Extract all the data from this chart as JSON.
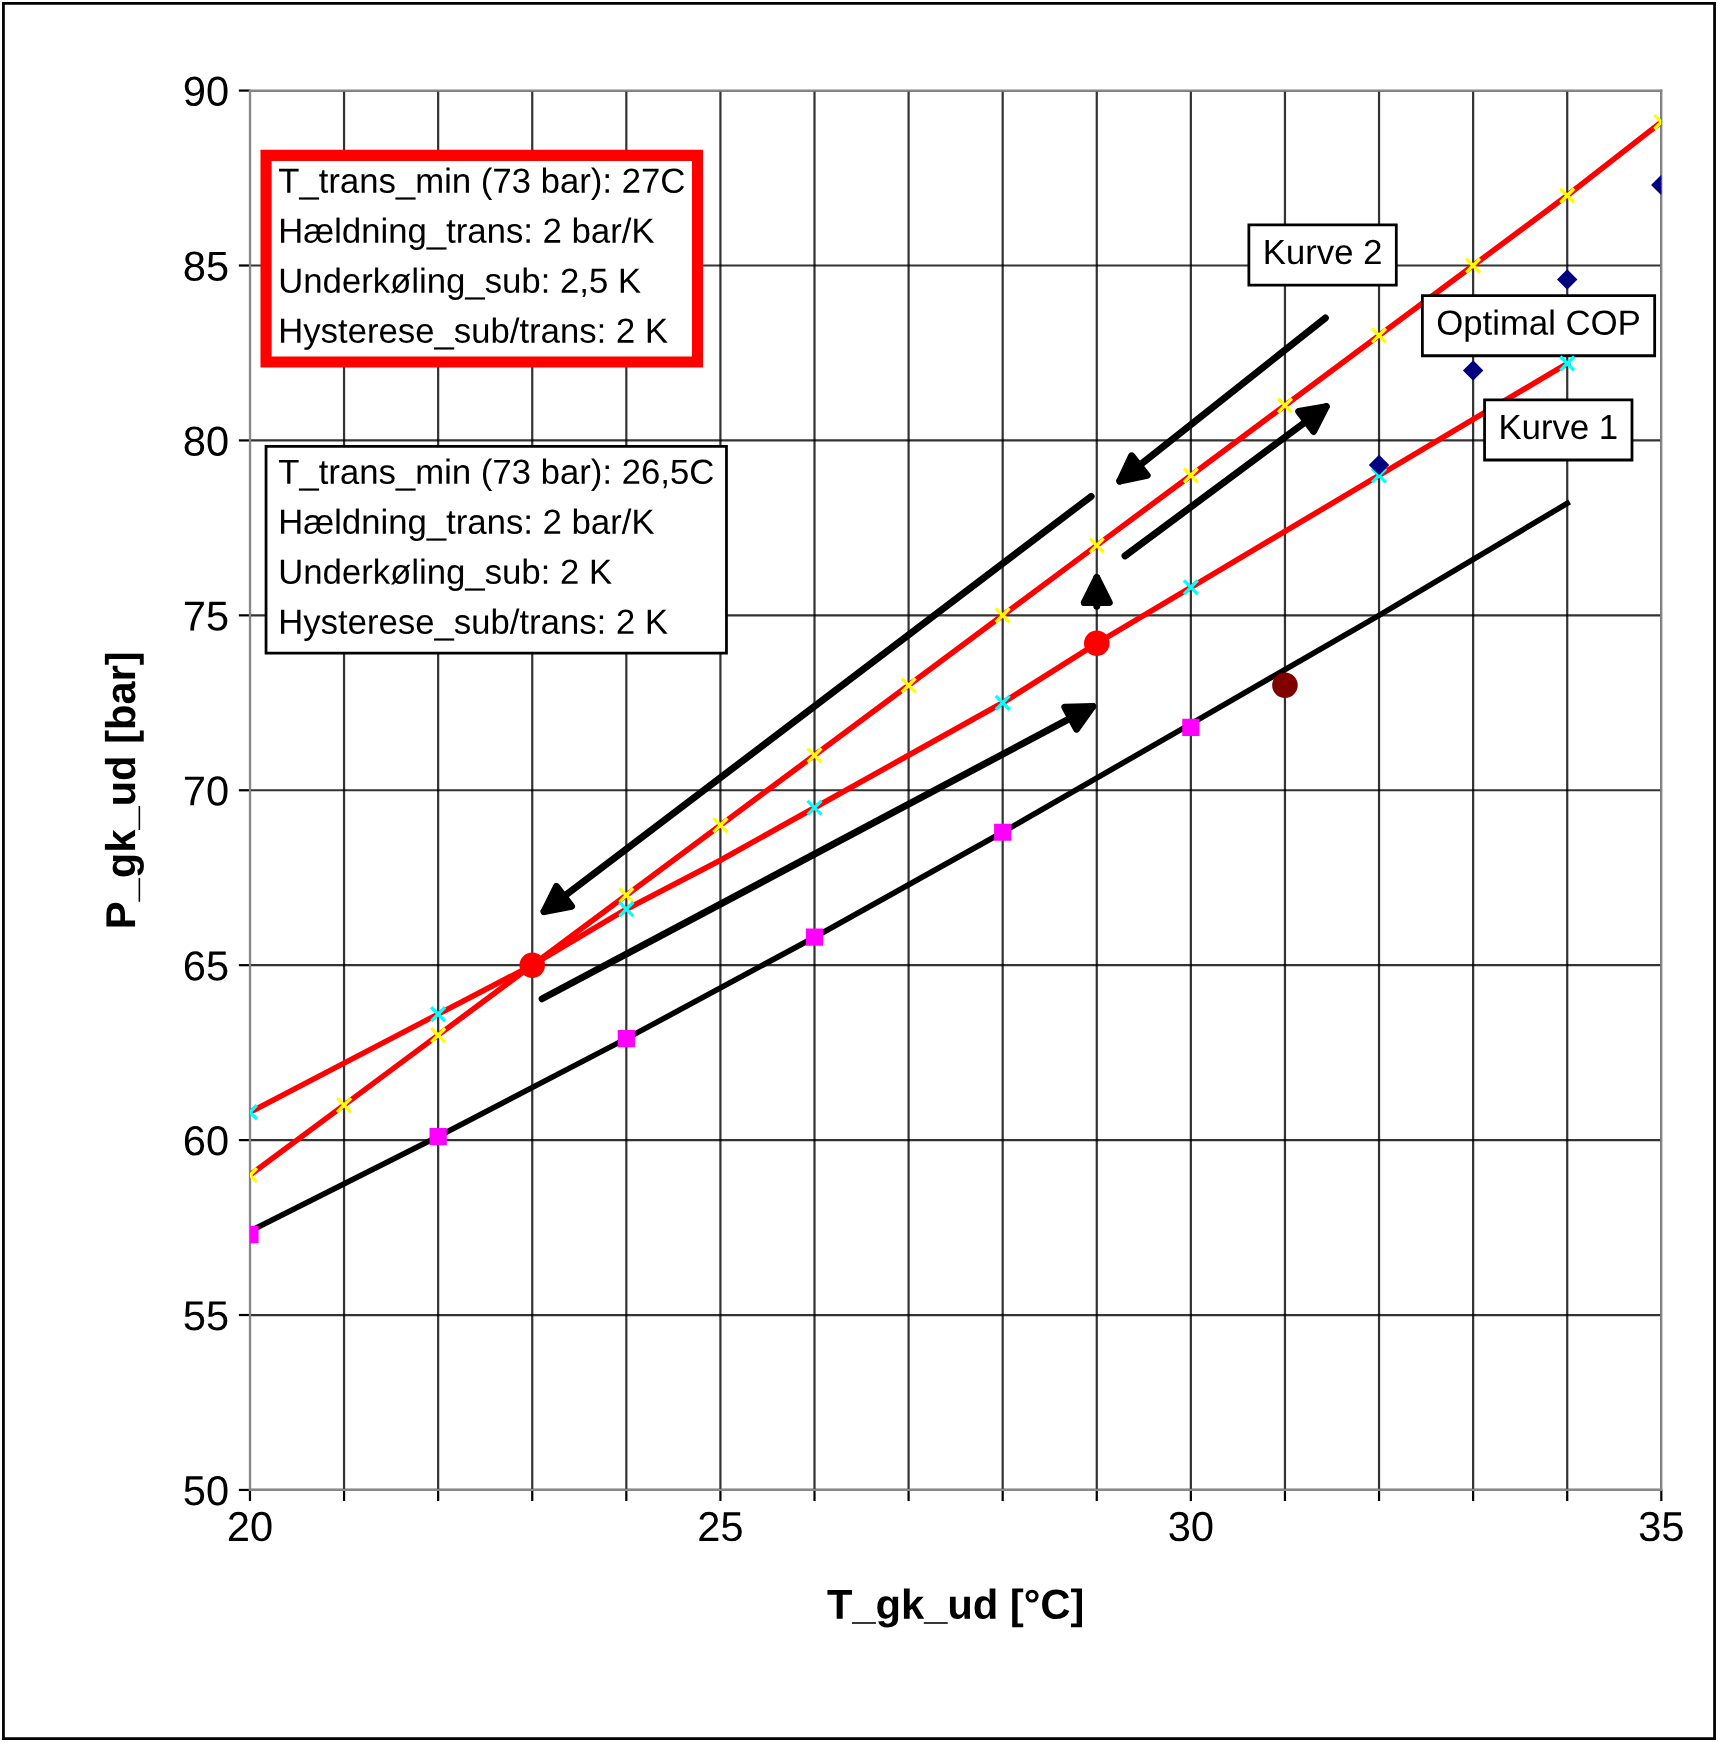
{
  "chart_data": {
    "type": "line",
    "xlabel": "T_gk_ud [°C]",
    "ylabel": "P_gk_ud [bar]",
    "xlim": [
      20,
      35
    ],
    "ylim": [
      50,
      90
    ],
    "xticks": [
      20,
      {
        "value": 21,
        "label": null
      },
      {
        "value": 22,
        "label": null
      },
      {
        "value": 23,
        "label": null
      },
      {
        "value": 24,
        "label": null
      },
      25,
      {
        "value": 26,
        "label": null
      },
      {
        "value": 27,
        "label": null
      },
      {
        "value": 28,
        "label": null
      },
      {
        "value": 29,
        "label": null
      },
      30,
      {
        "value": 31,
        "label": null
      },
      {
        "value": 32,
        "label": null
      },
      {
        "value": 33,
        "label": null
      },
      {
        "value": 34,
        "label": null
      },
      35
    ],
    "yticks": [
      50,
      55,
      60,
      65,
      70,
      75,
      80,
      85,
      90
    ],
    "grid": true,
    "legend": false,
    "series": [
      {
        "color": "#ff0000",
        "marker": "none",
        "x": [
          20,
          21,
          22,
          23,
          24,
          25,
          26,
          27,
          28,
          29,
          30,
          31,
          32,
          33,
          34,
          35
        ],
        "values": [
          59.0,
          61.0,
          63.0,
          65.0,
          67.0,
          69.0,
          71.0,
          73.0,
          75.0,
          77.0,
          79.0,
          81.0,
          83.0,
          85.0,
          87.0,
          89.1
        ]
      },
      {
        "type": "scatter",
        "color": "#ffff00",
        "marker": "cross",
        "x": [
          20,
          21,
          22,
          23,
          24,
          25,
          26,
          27,
          28,
          29,
          30,
          31,
          32,
          33,
          34,
          35
        ],
        "values": [
          59.0,
          61.0,
          63.0,
          null,
          67.0,
          69.0,
          71.0,
          73.0,
          75.0,
          77.0,
          79.0,
          81.0,
          83.0,
          85.0,
          87.0,
          89.1
        ]
      },
      {
        "color": "#ff0000",
        "marker": "none",
        "x": [
          20,
          21,
          22,
          23,
          24,
          25,
          26,
          27,
          28,
          29,
          30,
          31,
          32,
          33,
          34
        ],
        "values": [
          60.8,
          62.2,
          63.6,
          65.0,
          66.6,
          68.0,
          69.5,
          71.0,
          72.5,
          74.2,
          75.8,
          77.4,
          79.0,
          80.6,
          82.2
        ]
      },
      {
        "type": "scatter",
        "color": "#00ffff",
        "marker": "cross",
        "x": [
          20,
          22,
          24,
          26,
          28,
          30,
          32,
          34
        ],
        "values": [
          60.8,
          63.6,
          66.6,
          69.5,
          72.5,
          75.8,
          79.0,
          82.2
        ]
      },
      {
        "color": "#000000",
        "marker": "none",
        "x": [
          20,
          22,
          24,
          26,
          28,
          30,
          32,
          34
        ],
        "values": [
          57.4,
          60.1,
          62.9,
          65.8,
          68.8,
          71.9,
          75.0,
          78.2
        ]
      },
      {
        "type": "scatter",
        "color": "#ff00ff",
        "marker": "square",
        "x": [
          20,
          22,
          24,
          26,
          28,
          30
        ],
        "values": [
          57.3,
          60.1,
          62.9,
          65.8,
          68.8,
          71.8
        ]
      },
      {
        "type": "scatter",
        "color": "#000080",
        "marker": "diamond",
        "x": [
          32,
          33,
          34,
          35
        ],
        "values": [
          79.3,
          82.0,
          84.6,
          87.3
        ]
      },
      {
        "type": "scatter",
        "color": "#ff0000",
        "marker": "circle",
        "x": [
          23,
          29
        ],
        "values": [
          65.0,
          74.2
        ]
      },
      {
        "type": "scatter",
        "color": "#800000",
        "marker": "circle",
        "x": [
          31
        ],
        "values": [
          73.0
        ]
      }
    ],
    "annotations": [
      "T_trans_min (73 bar): 27C\nHældning_trans: 2 bar/K\nUnderkøling_sub: 2,5 K\nHysterese_sub/trans: 2 K",
      "T_trans_min (73 bar): 26,5C\nHældning_trans: 2 bar/K\nUnderkøling_sub: 2 K\nHysterese_sub/trans: 2 K",
      "Kurve 2",
      "Optimal COP",
      "Kurve 1"
    ]
  }
}
